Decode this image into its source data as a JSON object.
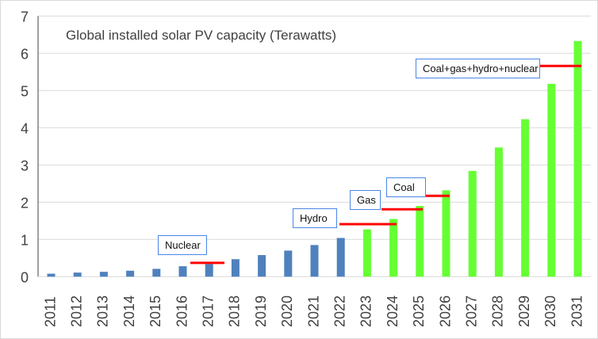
{
  "chart_data": {
    "type": "bar",
    "title": "Global installed solar PV capacity (Terawatts)",
    "xlabel": "",
    "ylabel": "",
    "ylim": [
      0,
      7
    ],
    "yticks": [
      "0",
      "1",
      "2",
      "3",
      "4",
      "5",
      "6",
      "7"
    ],
    "grid": true,
    "categories": [
      "2011",
      "2012",
      "2013",
      "2014",
      "2015",
      "2016",
      "2017",
      "2018",
      "2019",
      "2020",
      "2021",
      "2022",
      "2023",
      "2024",
      "2025",
      "2026",
      "2027",
      "2028",
      "2029",
      "2030",
      "2031"
    ],
    "values": [
      0.08,
      0.11,
      0.13,
      0.16,
      0.21,
      0.28,
      0.34,
      0.47,
      0.58,
      0.7,
      0.85,
      1.04,
      1.27,
      1.55,
      1.9,
      2.32,
      2.84,
      3.47,
      4.23,
      5.18,
      6.33
    ],
    "bar_colors": {
      "historical": "#4f81bd",
      "projected": "#66ff33"
    },
    "projected_from": "2023",
    "annotations": [
      {
        "label": "Nuclear",
        "value": 0.37,
        "from": "2016",
        "to": "2017"
      },
      {
        "label": "Hydro",
        "value": 1.41,
        "from": "2022",
        "to": "2024"
      },
      {
        "label": "Gas",
        "value": 1.81,
        "from": "2024",
        "to": "2025"
      },
      {
        "label": "Coal",
        "value": 2.17,
        "from": "2025",
        "to": "2026"
      },
      {
        "label": "Coal+gas+hydro+nuclear",
        "value": 5.66,
        "from": "2030",
        "to": "2031"
      }
    ],
    "annotation_line_color": "#ff0000"
  }
}
